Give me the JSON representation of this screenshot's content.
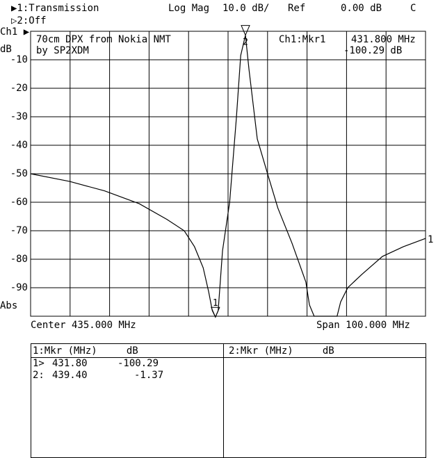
{
  "header": {
    "ch1_label": "▶1:Transmission",
    "format": "Log Mag",
    "scale": "10.0 dB/",
    "ref_label": "Ref",
    "ref_value": "0.00 dB",
    "flag": "C",
    "ch2_label": "▷2:Off"
  },
  "axis": {
    "channel": "Ch1 ▶",
    "unit": "dB",
    "abs": "Abs",
    "center": "Center 435.000 MHz",
    "span": "Span 100.000 MHz",
    "trace_end_label": "1"
  },
  "annotation": {
    "line1": "70cm DPX from Nokia NMT",
    "line2": "by SP2XDM",
    "mkr_label": "Ch1:Mkr1",
    "mkr_freq": "431.800 MHz",
    "mkr_value": "-100.29 dB"
  },
  "marker_table": {
    "left_header": "1:Mkr (MHz)     dB",
    "right_header": "2:Mkr (MHz)     dB",
    "rows": [
      {
        "id": "1>",
        "freq": "431.80",
        "db": "-100.29"
      },
      {
        "id": "2:",
        "freq": "439.40",
        "db": "-1.37"
      }
    ]
  },
  "chart_data": {
    "type": "line",
    "title": "",
    "xlabel": "",
    "ylabel": "dB",
    "xlim": [
      385,
      485
    ],
    "ylim": [
      -100,
      0
    ],
    "grid": true,
    "yticks": [
      -10,
      -20,
      -30,
      -40,
      -50,
      -60,
      -70,
      -80,
      -90
    ],
    "ytick_labels": [
      "-10",
      "-20",
      "-30",
      "-40",
      "-50",
      "-60",
      "-70",
      "-80",
      "-90"
    ],
    "series": [
      {
        "x": [
          385,
          394.9,
          403.7,
          412.5,
          419.5,
          423.9,
          426.5,
          428.7,
          430.1,
          431,
          431.8,
          432.5,
          433.6,
          435.4,
          437.1,
          438.2,
          439.4,
          440.3,
          442.4,
          445,
          447.6,
          451.2,
          454.7,
          455.6,
          456.8,
          462.6,
          463.5,
          465.3,
          468.8,
          474.1,
          479.4,
          485
        ],
        "y": [
          -50,
          -52.7,
          -56,
          -60.5,
          -66,
          -70,
          -75.6,
          -83,
          -91.5,
          -98,
          -100.29,
          -98,
          -77,
          -60,
          -30.5,
          -8.5,
          -1.37,
          -13.4,
          -37.8,
          -50,
          -62,
          -74.4,
          -88,
          -96,
          -100,
          -100,
          -95,
          -90,
          -85.4,
          -79,
          -75.6,
          -72.7
        ]
      }
    ],
    "markers": [
      {
        "label": "1",
        "x": 431.8,
        "y": -100.29
      },
      {
        "label": "2",
        "x": 439.4,
        "y": -1.37
      }
    ]
  }
}
